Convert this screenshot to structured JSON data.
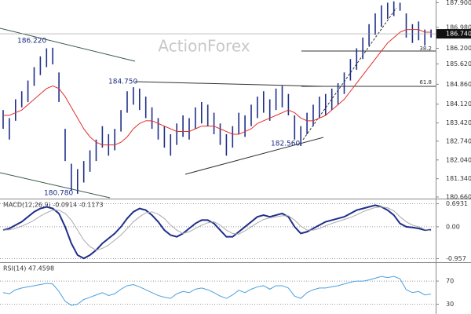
{
  "chart_data": [
    {
      "type": "ohlc",
      "watermark": "ActionForex",
      "annotations": [
        "186.220",
        "184.750",
        "182.560",
        "180.780",
        "38.2",
        "61.8"
      ],
      "last_price": {
        "value": 186.74,
        "label": "186.740"
      },
      "ylim": [
        180.6,
        188.0
      ],
      "yticks": [
        {
          "value": 187.9,
          "label": "187.900"
        },
        {
          "value": 186.98,
          "label": "186.980"
        },
        {
          "value": 186.2,
          "label": "186.200"
        },
        {
          "value": 185.62,
          "label": "185.620"
        },
        {
          "value": 184.86,
          "label": "184.860"
        },
        {
          "value": 184.12,
          "label": "184.120"
        },
        {
          "value": 183.42,
          "label": "183.420"
        },
        {
          "value": 182.74,
          "label": "182.740"
        },
        {
          "value": 182.04,
          "label": "182.040"
        },
        {
          "value": 181.34,
          "label": "181.340"
        },
        {
          "value": 180.66,
          "label": "180.660"
        }
      ],
      "series": [
        {
          "color": "#1f2f8a",
          "high": [
            183.9,
            183.6,
            184.3,
            184.6,
            185.0,
            185.5,
            185.9,
            186.2,
            186.22,
            185.3,
            183.2,
            181.9,
            181.7,
            182.0,
            182.4,
            182.8,
            183.3,
            183.0,
            183.2,
            183.9,
            184.6,
            184.75,
            184.7,
            184.4,
            184.0,
            183.6,
            183.3,
            183.0,
            183.4,
            183.7,
            183.6,
            184.0,
            184.2,
            184.1,
            183.8,
            183.4,
            183.0,
            183.3,
            183.8,
            183.7,
            184.1,
            184.4,
            184.6,
            184.3,
            184.7,
            184.8,
            184.5,
            183.7,
            183.3,
            183.8,
            184.1,
            184.4,
            184.5,
            184.7,
            184.9,
            185.3,
            185.8,
            186.2,
            186.6,
            187.1,
            187.5,
            187.8,
            187.9,
            187.95,
            187.9,
            187.5,
            187.1,
            187.2,
            186.9,
            186.9
          ],
          "low": [
            183.2,
            182.8,
            183.5,
            184.0,
            184.2,
            184.8,
            185.2,
            185.5,
            185.6,
            184.2,
            182.0,
            180.9,
            180.78,
            181.2,
            181.6,
            182.0,
            182.5,
            182.2,
            182.4,
            183.1,
            183.8,
            184.1,
            183.9,
            183.6,
            183.2,
            182.8,
            182.5,
            182.2,
            182.6,
            182.9,
            182.8,
            183.2,
            183.4,
            183.3,
            183.0,
            182.6,
            182.2,
            182.5,
            183.0,
            182.9,
            183.3,
            183.6,
            183.8,
            183.5,
            183.9,
            184.0,
            183.7,
            182.8,
            182.56,
            183.0,
            183.3,
            183.6,
            183.7,
            183.9,
            184.1,
            184.5,
            185.0,
            185.4,
            185.8,
            186.3,
            186.7,
            187.0,
            187.3,
            187.4,
            187.6,
            186.6,
            186.4,
            186.5,
            186.3,
            186.6
          ]
        },
        {
          "color": "#e0302a",
          "values": [
            183.7,
            183.7,
            183.8,
            183.9,
            184.1,
            184.3,
            184.5,
            184.7,
            184.8,
            184.7,
            184.4,
            184.0,
            183.6,
            183.2,
            182.9,
            182.7,
            182.6,
            182.6,
            182.6,
            182.7,
            182.9,
            183.2,
            183.4,
            183.5,
            183.5,
            183.4,
            183.3,
            183.2,
            183.1,
            183.1,
            183.1,
            183.2,
            183.3,
            183.3,
            183.3,
            183.2,
            183.1,
            183.0,
            183.0,
            183.1,
            183.2,
            183.4,
            183.5,
            183.6,
            183.7,
            183.8,
            183.9,
            183.8,
            183.6,
            183.5,
            183.5,
            183.6,
            183.7,
            183.9,
            184.1,
            184.3,
            184.6,
            184.9,
            185.2,
            185.5,
            185.8,
            186.1,
            186.4,
            186.6,
            186.8,
            186.9,
            186.9,
            186.9,
            186.8,
            186.8
          ]
        }
      ]
    },
    {
      "type": "line",
      "title": "MACD(12,26,9) -0.0914 -0.1173",
      "ylim": [
        -1.04,
        0.8
      ],
      "yticks": [
        0.6931,
        {
          "value": 0,
          "label": "0.00"
        },
        -0.957
      ],
      "series": [
        {
          "color": "#1f2f8a",
          "values": [
            -0.1,
            -0.05,
            0.05,
            0.15,
            0.3,
            0.45,
            0.55,
            0.6,
            0.55,
            0.4,
            0.0,
            -0.5,
            -0.85,
            -0.95,
            -0.85,
            -0.7,
            -0.5,
            -0.35,
            -0.2,
            0.0,
            0.25,
            0.45,
            0.55,
            0.5,
            0.35,
            0.15,
            -0.1,
            -0.25,
            -0.3,
            -0.2,
            -0.05,
            0.1,
            0.2,
            0.2,
            0.1,
            -0.1,
            -0.3,
            -0.3,
            -0.15,
            0.0,
            0.15,
            0.3,
            0.35,
            0.3,
            0.35,
            0.4,
            0.3,
            0.0,
            -0.2,
            -0.15,
            -0.05,
            0.05,
            0.15,
            0.2,
            0.25,
            0.3,
            0.4,
            0.5,
            0.55,
            0.6,
            0.65,
            0.6,
            0.5,
            0.35,
            0.1,
            0.0,
            -0.02,
            -0.05,
            -0.1,
            -0.0914
          ]
        },
        {
          "color": "#aaaaaa",
          "values": [
            -0.1,
            -0.09,
            -0.05,
            0.02,
            0.1,
            0.2,
            0.32,
            0.42,
            0.5,
            0.5,
            0.4,
            0.2,
            -0.1,
            -0.4,
            -0.6,
            -0.7,
            -0.65,
            -0.55,
            -0.4,
            -0.25,
            -0.05,
            0.15,
            0.3,
            0.42,
            0.45,
            0.38,
            0.25,
            0.05,
            -0.1,
            -0.2,
            -0.15,
            -0.05,
            0.05,
            0.12,
            0.15,
            0.05,
            -0.1,
            -0.2,
            -0.22,
            -0.12,
            0.0,
            0.12,
            0.22,
            0.27,
            0.3,
            0.33,
            0.33,
            0.2,
            0.02,
            -0.1,
            -0.1,
            -0.05,
            0.03,
            0.1,
            0.16,
            0.22,
            0.28,
            0.36,
            0.45,
            0.52,
            0.58,
            0.6,
            0.57,
            0.48,
            0.3,
            0.15,
            0.05,
            0.0,
            -0.08,
            -0.1173
          ]
        }
      ]
    },
    {
      "type": "line",
      "title": "RSI(14) 47.4598",
      "ylim": [
        13,
        100
      ],
      "yticks": [
        70,
        30
      ],
      "series": [
        {
          "color": "#4aa0e0",
          "values": [
            50,
            48,
            55,
            58,
            60,
            62,
            64,
            66,
            65,
            52,
            35,
            28,
            30,
            38,
            42,
            46,
            50,
            45,
            48,
            56,
            62,
            64,
            60,
            55,
            50,
            45,
            42,
            40,
            48,
            52,
            50,
            56,
            58,
            55,
            50,
            44,
            40,
            46,
            54,
            50,
            56,
            60,
            62,
            56,
            62,
            62,
            58,
            44,
            40,
            50,
            55,
            58,
            58,
            60,
            62,
            65,
            68,
            70,
            70,
            72,
            75,
            78,
            76,
            78,
            74,
            55,
            50,
            52,
            46,
            47.4598
          ]
        }
      ]
    }
  ]
}
